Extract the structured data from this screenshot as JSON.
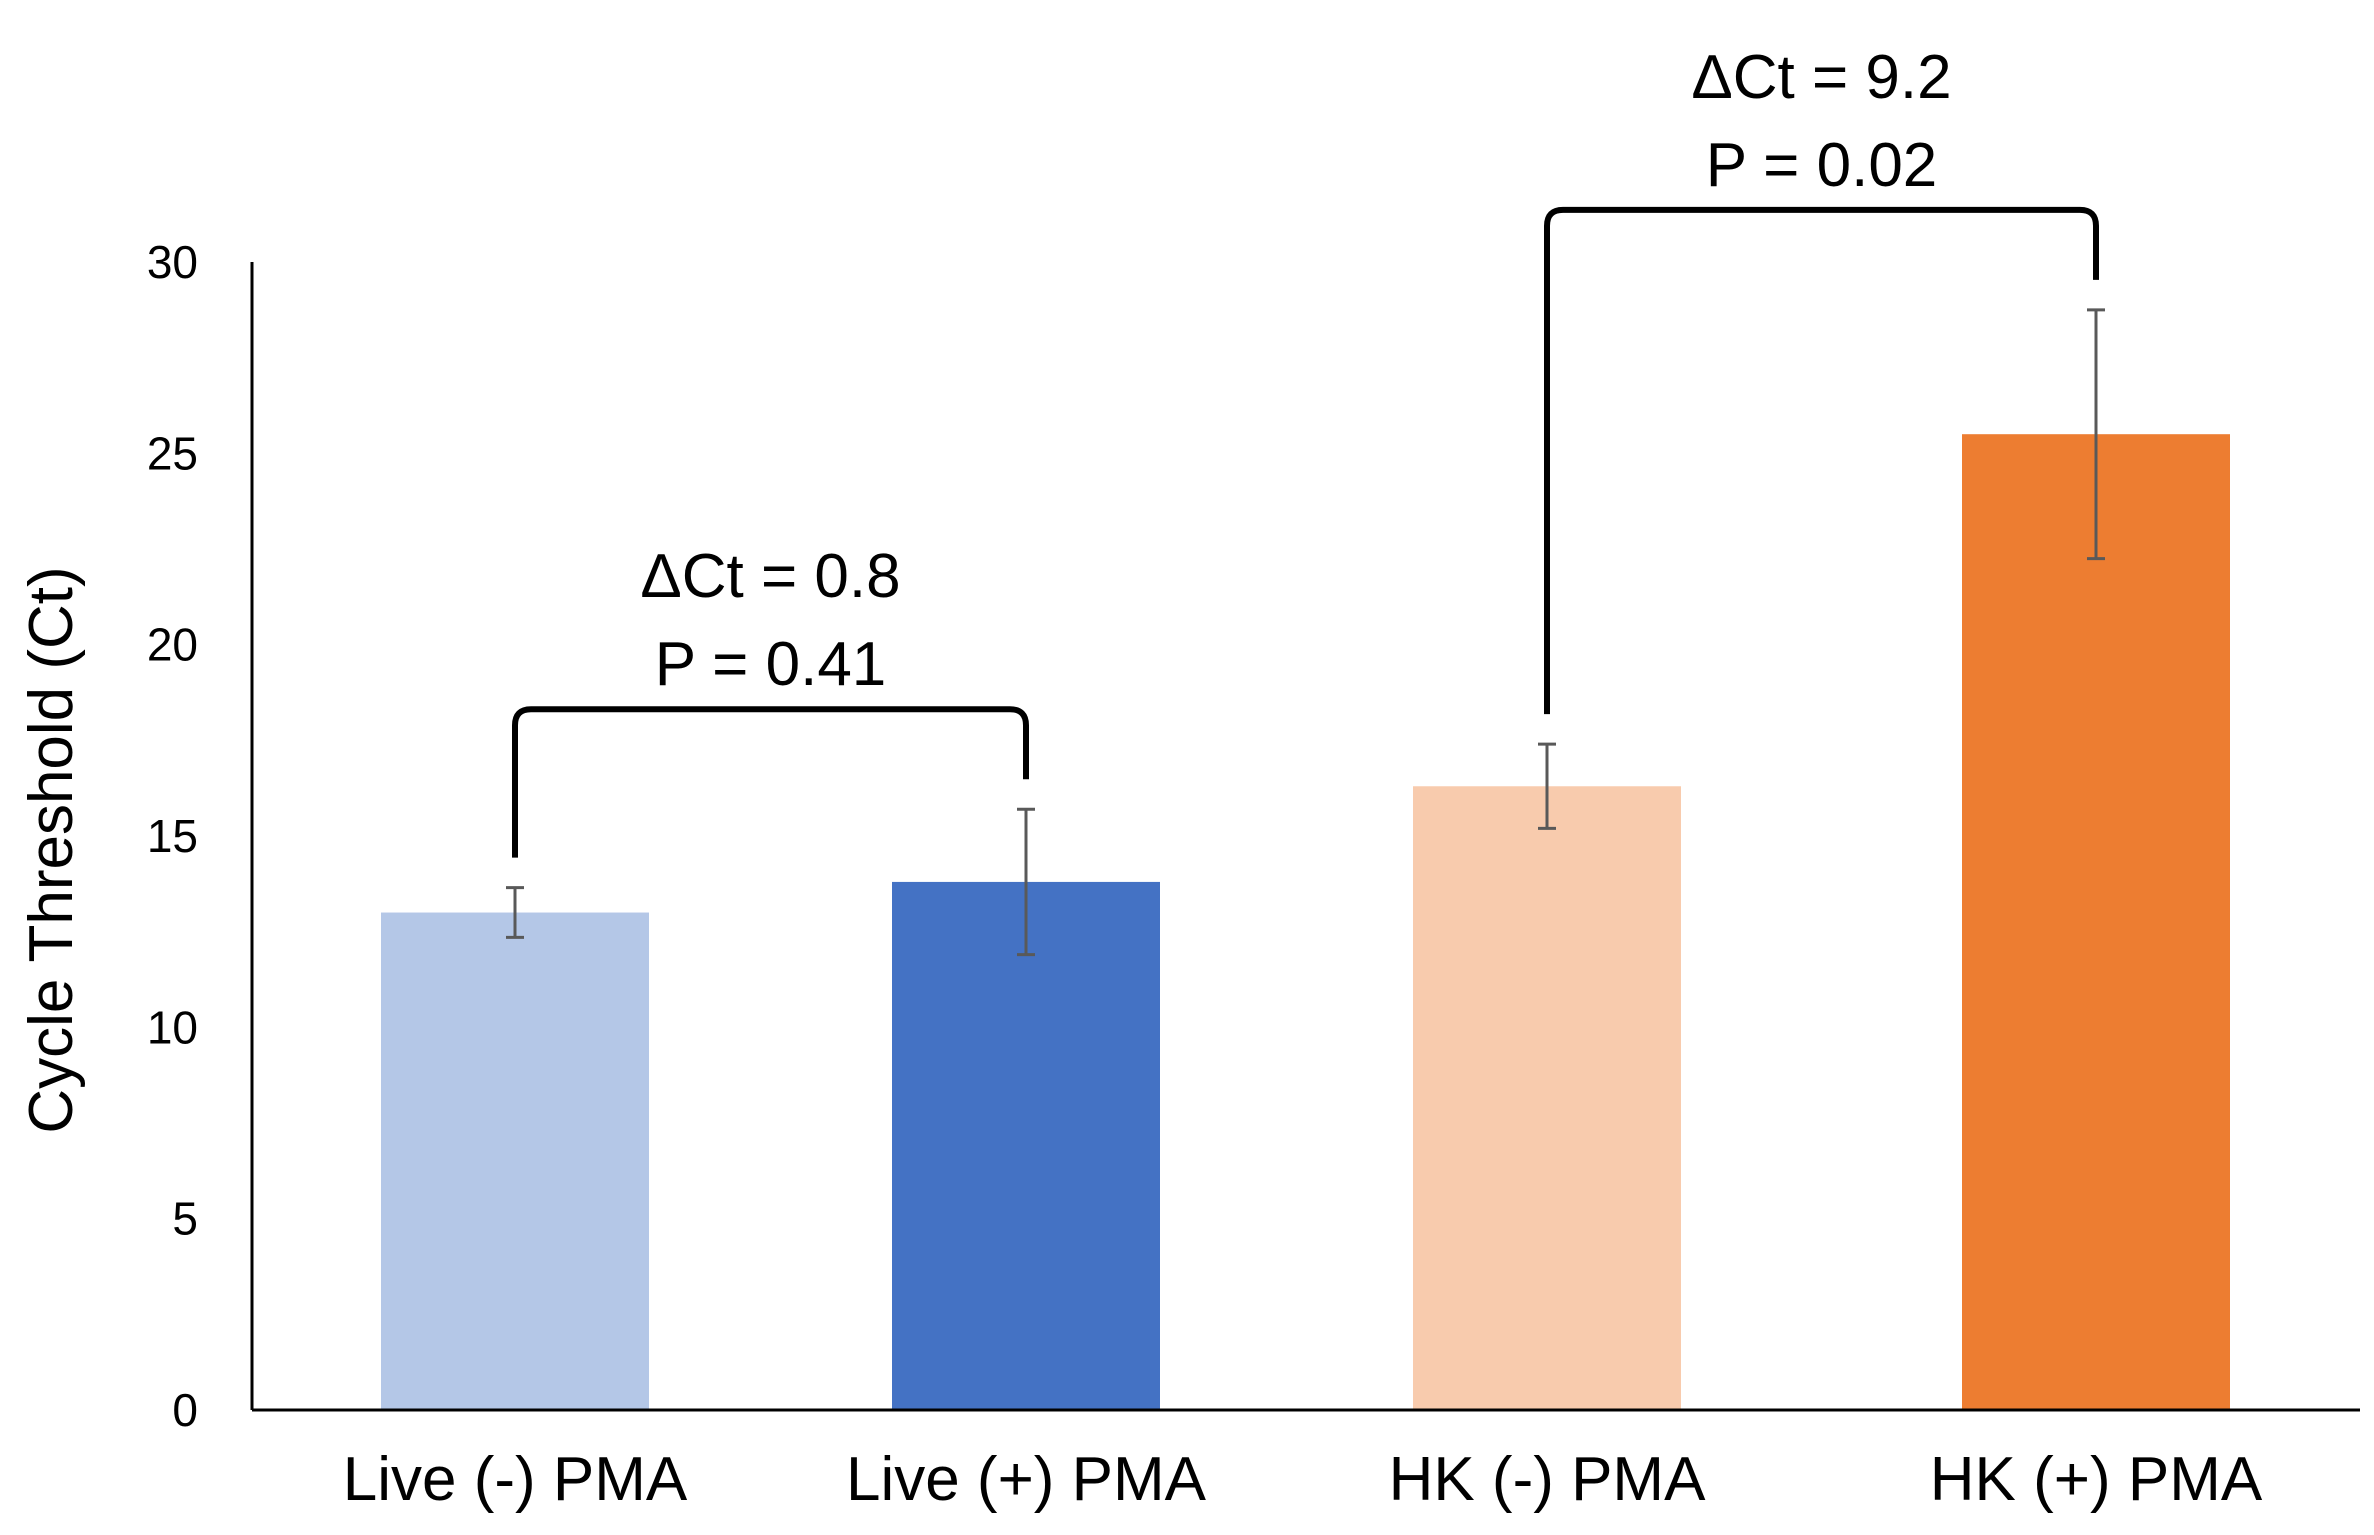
{
  "chart_data": {
    "type": "bar",
    "categories": [
      "Live (-) PMA",
      "Live (+) PMA",
      "HK (-) PMA",
      "HK (+) PMA"
    ],
    "values": [
      13.0,
      13.8,
      16.3,
      25.5
    ],
    "errors": [
      0.65,
      1.9,
      1.1,
      3.25
    ],
    "colors": [
      "#b4c7e7",
      "#4472c4",
      "#f8cbad",
      "#ed7d31"
    ],
    "error_color": "#595959",
    "title": "",
    "xlabel": "",
    "ylabel": "Cycle Threshold (Ct)",
    "ylim": [
      0,
      30
    ],
    "yticks": [
      "0",
      "5",
      "10",
      "15",
      "20",
      "25",
      "30"
    ],
    "grid": false,
    "legend": "none",
    "annotations": [
      {
        "from": 0,
        "to": 1,
        "line1": "ΔCt = 0.8",
        "line2": "P = 0.41"
      },
      {
        "from": 2,
        "to": 3,
        "line1": "ΔCt = 9.2",
        "line2": "P = 0.02"
      }
    ]
  }
}
